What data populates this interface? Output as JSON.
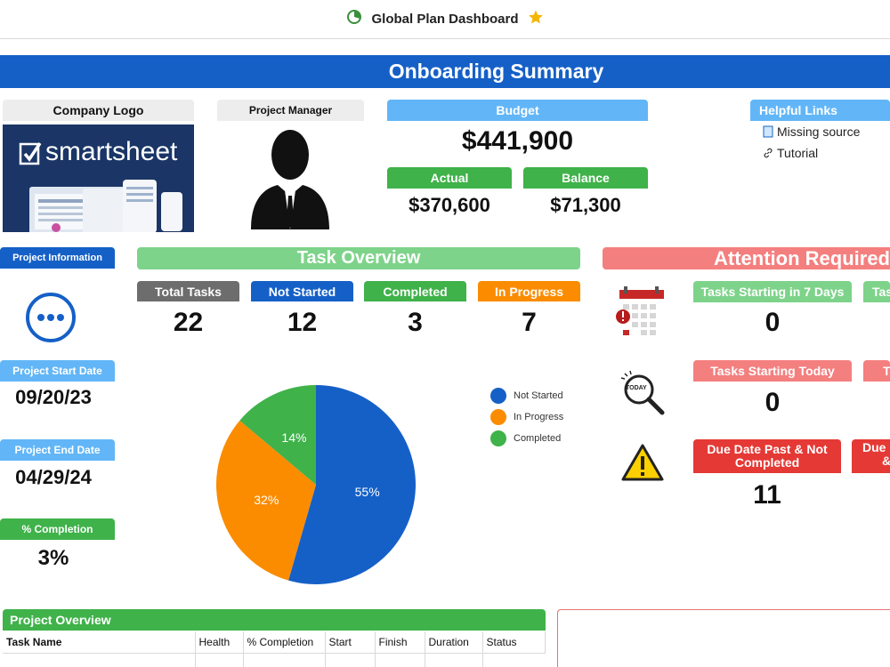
{
  "header": {
    "title": "Global Plan Dashboard"
  },
  "banner": {
    "title": "Onboarding Summary"
  },
  "logo": {
    "label": "Company Logo",
    "brand": "smartsheet"
  },
  "manager": {
    "label": "Project Manager"
  },
  "budget": {
    "label": "Budget",
    "value": "$441,900",
    "actual_label": "Actual",
    "actual_value": "$370,600",
    "balance_label": "Balance",
    "balance_value": "$71,300"
  },
  "links": {
    "title": "Helpful Links",
    "items": [
      "Missing source",
      "Tutorial"
    ]
  },
  "project_info": {
    "title": "Project Information",
    "start_label": "Project Start Date",
    "start_value": "09/20/23",
    "end_label": "Project End Date",
    "end_value": "04/29/24",
    "completion_label": "% Completion",
    "completion_value": "3%"
  },
  "task_overview": {
    "title": "Task Overview",
    "cards": [
      {
        "label": "Total Tasks",
        "value": "22"
      },
      {
        "label": "Not Started",
        "value": "12"
      },
      {
        "label": "Completed",
        "value": "3"
      },
      {
        "label": "In Progress",
        "value": "7"
      }
    ]
  },
  "chart_data": {
    "type": "pie",
    "title": "",
    "labels": [
      "Not Started",
      "In Progress",
      "Completed"
    ],
    "values": [
      55,
      32,
      14
    ],
    "display_labels": [
      "55%",
      "32%",
      "14%"
    ],
    "colors": [
      "#1560c7",
      "#fb8c00",
      "#3fb24a"
    ],
    "legend_placement": "right"
  },
  "attention": {
    "title": "Attention Required",
    "cards": [
      {
        "label": "Tasks Starting in 7 Days",
        "value": "0"
      },
      {
        "label": "Tasks Starting Today",
        "value": "0"
      },
      {
        "label": "Due Date Past & Not Completed",
        "value": "11"
      }
    ],
    "today_icon_text": "TODAY",
    "partial_labels": [
      "Tas",
      "T",
      "Due",
      "&"
    ]
  },
  "project_overview": {
    "title": "Project Overview",
    "columns": [
      "Task Name",
      "Health",
      "% Completion",
      "Start",
      "Finish",
      "Duration",
      "Status"
    ]
  },
  "colors": {
    "primary_blue": "#1560c7",
    "light_blue": "#62b6f7",
    "green": "#3fb24a",
    "light_green": "#7ed38a",
    "orange": "#fb8c00",
    "grey": "#6d6d6d",
    "pink": "#f47f7f",
    "red": "#e53935",
    "star": "#f2b705"
  }
}
